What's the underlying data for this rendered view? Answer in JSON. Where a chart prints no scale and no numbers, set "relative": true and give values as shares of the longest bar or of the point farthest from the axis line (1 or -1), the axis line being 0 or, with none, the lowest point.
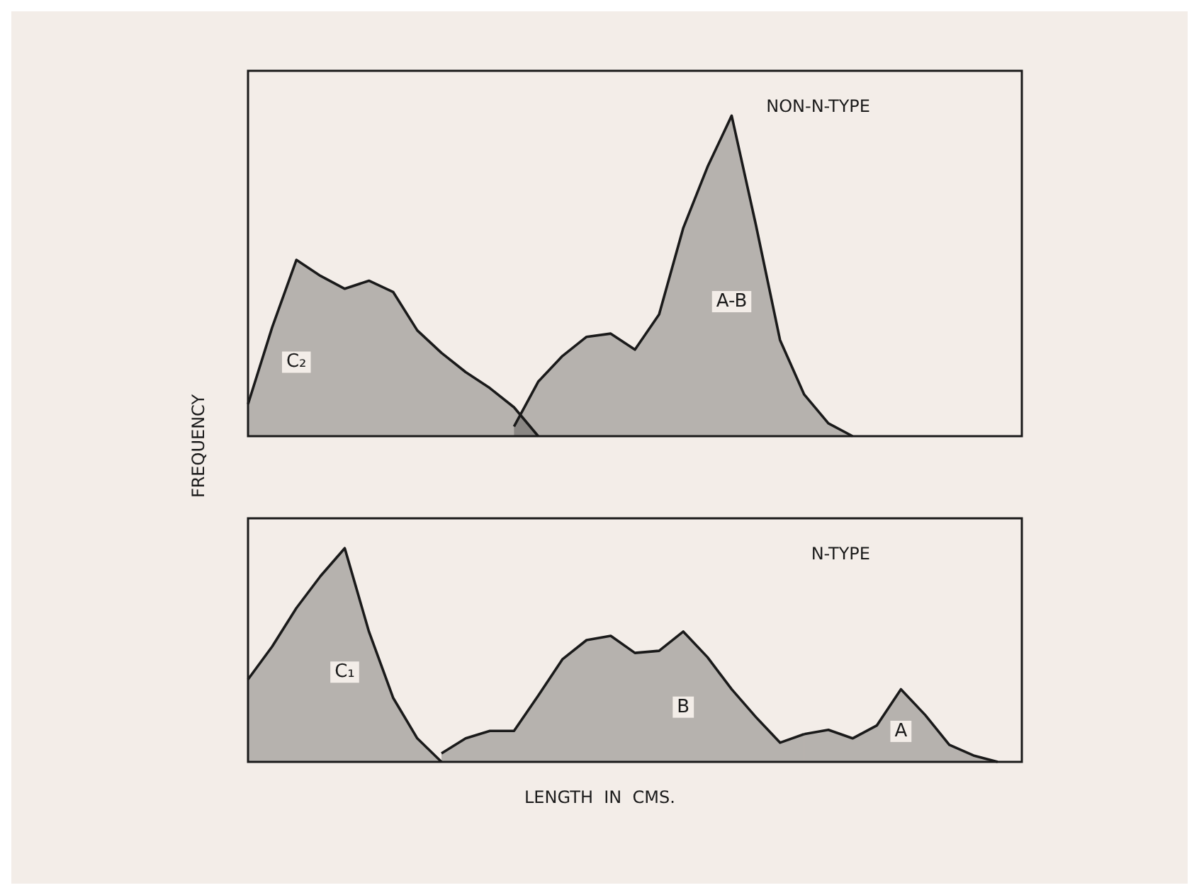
{
  "chart_data": [
    {
      "type": "area",
      "title": "NON-N-TYPE",
      "ylabel": "FREQUENCY",
      "relative": true,
      "legend": false,
      "grid": false,
      "categories": [
        null,
        null,
        null,
        null,
        null,
        null,
        null,
        null,
        null,
        null,
        null,
        null,
        null,
        null,
        null,
        null,
        null,
        null,
        null,
        null,
        null,
        null,
        null,
        null,
        null,
        null,
        null,
        null,
        null,
        null,
        null,
        null,
        null
      ],
      "series": [
        {
          "name": "C₂",
          "color": "#1a1a1a",
          "values": [
            0.1,
            0.34,
            0.55,
            0.5,
            0.46,
            0.485,
            0.45,
            0.33,
            0.26,
            0.2,
            0.15,
            0.09,
            0,
            null,
            null,
            null,
            null,
            null,
            null,
            null,
            null,
            null,
            null,
            null,
            null,
            null,
            null,
            null,
            null,
            null,
            null,
            null,
            null
          ]
        },
        {
          "name": "A-B",
          "color": "#1a1a1a",
          "values": [
            null,
            null,
            null,
            null,
            null,
            null,
            null,
            null,
            null,
            null,
            null,
            0.03,
            0.17,
            0.25,
            0.31,
            0.32,
            0.27,
            0.38,
            0.65,
            0.84,
            1.0,
            0.66,
            0.3,
            0.13,
            0.04,
            0,
            null,
            null,
            null,
            null,
            null,
            null,
            null
          ]
        }
      ]
    },
    {
      "type": "area",
      "title": "N-TYPE",
      "xlabel": "LENGTH  IN  CMS.",
      "relative": true,
      "legend": false,
      "grid": false,
      "categories": [
        null,
        null,
        null,
        null,
        null,
        null,
        null,
        null,
        null,
        null,
        null,
        null,
        null,
        null,
        null,
        null,
        null,
        null,
        null,
        null,
        null,
        null,
        null,
        null,
        null,
        null,
        null,
        null,
        null,
        null,
        null,
        null,
        null
      ],
      "series": [
        {
          "name": "C₁",
          "color": "#1a1a1a",
          "values": [
            0.386,
            0.54,
            0.72,
            0.87,
            1.0,
            0.61,
            0.3,
            0.11,
            0,
            null,
            null,
            null,
            null,
            null,
            null,
            null,
            null,
            null,
            null,
            null,
            null,
            null,
            null,
            null,
            null,
            null,
            null,
            null,
            null,
            null,
            null,
            null,
            null
          ]
        },
        {
          "name": "B",
          "color": "#1a1a1a",
          "values": [
            null,
            null,
            null,
            null,
            null,
            null,
            null,
            null,
            0.04,
            0.11,
            0.145,
            0.145,
            0.31,
            0.48,
            0.57,
            0.59,
            0.51,
            0.52,
            0.61,
            0.49,
            0.34,
            0.21,
            0.09,
            0.13,
            null,
            null,
            null,
            null,
            null,
            null,
            null,
            null,
            null
          ]
        },
        {
          "name": "A",
          "color": "#1a1a1a",
          "values": [
            null,
            null,
            null,
            null,
            null,
            null,
            null,
            null,
            null,
            null,
            null,
            null,
            null,
            null,
            null,
            null,
            null,
            null,
            null,
            null,
            null,
            null,
            null,
            0.13,
            0.15,
            0.11,
            0.17,
            0.34,
            0.22,
            0.08,
            0.03,
            0,
            null
          ]
        }
      ]
    }
  ]
}
